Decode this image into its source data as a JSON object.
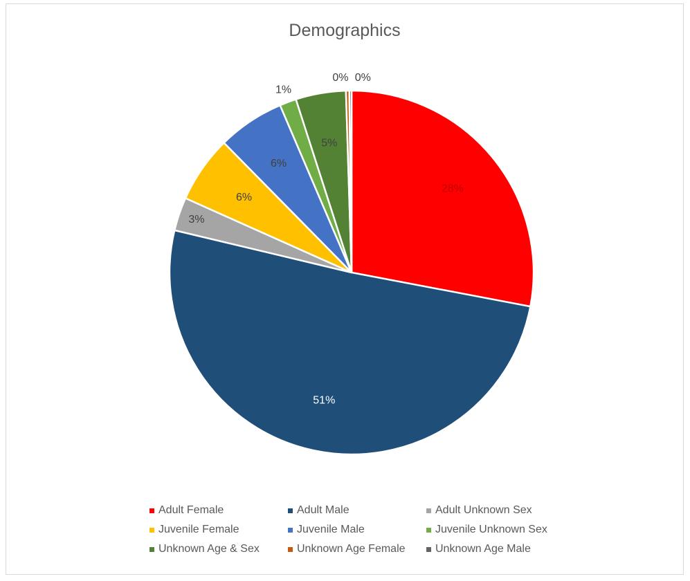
{
  "chart_data": {
    "type": "pie",
    "title": "Demographics",
    "categories": [
      "Adult Female",
      "Adult Male",
      "Adult Unknown Sex",
      "Juvenile Female",
      "Juvenile Male",
      "Juvenile Unknown Sex",
      "Unknown Age & Sex",
      "Unknown Age Female",
      "Unknown Age Male"
    ],
    "values": [
      28.3,
      51.3,
      3.0,
      6.0,
      6.0,
      1.5,
      4.5,
      0.3,
      0.2
    ],
    "data_labels": [
      "28%",
      "51%",
      "3%",
      "6%",
      "6%",
      "1%",
      "5%",
      "0%",
      "0%"
    ],
    "colors": [
      "#ff0000",
      "#1f4e79",
      "#a5a5a5",
      "#ffc000",
      "#4472c4",
      "#70ad47",
      "#548235",
      "#c55a11",
      "#636363"
    ],
    "label_colors": [
      "#c00000",
      "#ffffff",
      "#404040",
      "#404040",
      "#404040",
      "#404040",
      "#404040",
      "#404040",
      "#404040"
    ],
    "legend_position": "bottom",
    "start_angle": 0,
    "direction": "clockwise"
  }
}
